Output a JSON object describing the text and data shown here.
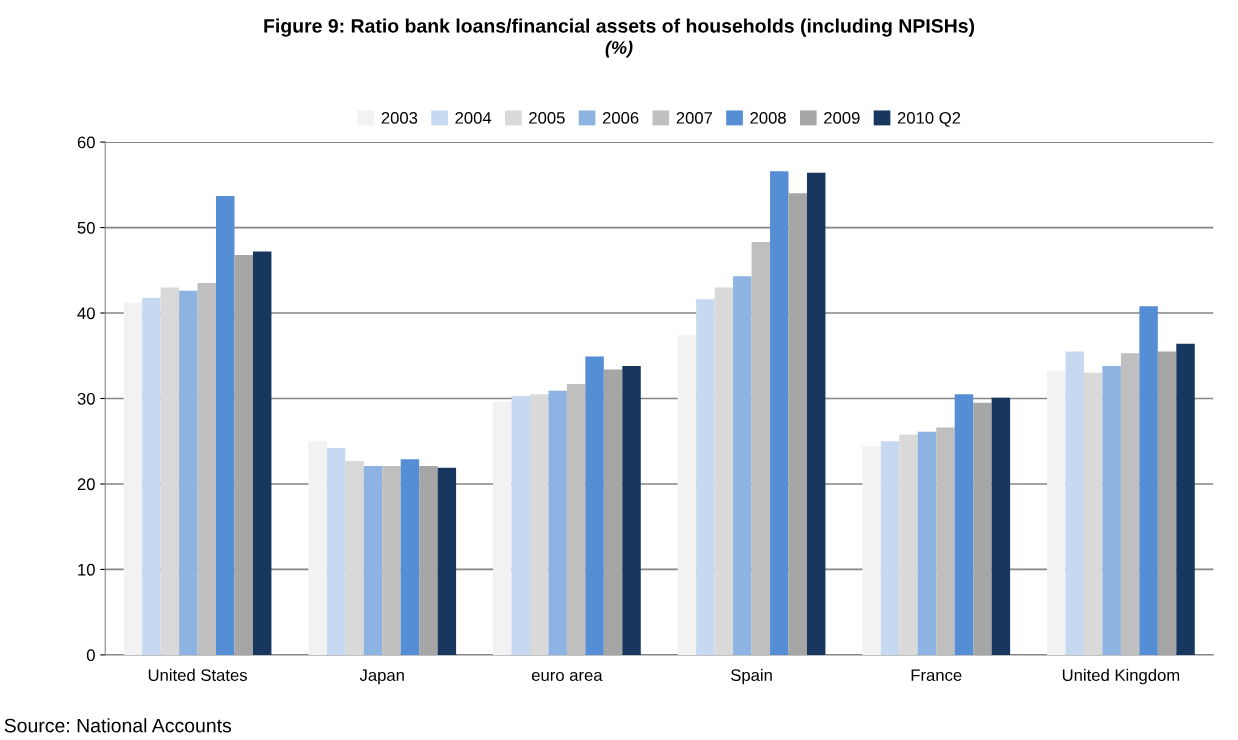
{
  "chart_data": {
    "type": "bar",
    "title": "Figure 9: Ratio bank loans/financial assets of households (including NPISHs)",
    "subtitle": "(%)",
    "categories": [
      "United States",
      "Japan",
      "euro area",
      "Spain",
      "France",
      "United Kingdom"
    ],
    "series": [
      {
        "name": "2003",
        "color": "#f2f2f2",
        "values": [
          41.2,
          25.0,
          29.6,
          37.4,
          24.4,
          33.2
        ]
      },
      {
        "name": "2004",
        "color": "#c6d9f1",
        "values": [
          41.8,
          24.2,
          30.3,
          41.6,
          25.0,
          35.5
        ]
      },
      {
        "name": "2005",
        "color": "#d9d9d9",
        "values": [
          43.0,
          22.7,
          30.5,
          43.0,
          25.8,
          33.0
        ]
      },
      {
        "name": "2006",
        "color": "#8db3e2",
        "values": [
          42.6,
          22.1,
          30.9,
          44.3,
          26.1,
          33.8
        ]
      },
      {
        "name": "2007",
        "color": "#bfbfbf",
        "values": [
          43.5,
          22.1,
          31.7,
          48.3,
          26.6,
          35.3
        ]
      },
      {
        "name": "2008",
        "color": "#558ed5",
        "values": [
          53.7,
          22.9,
          34.9,
          56.6,
          30.5,
          40.8
        ]
      },
      {
        "name": "2009",
        "color": "#a6a6a6",
        "values": [
          46.8,
          22.1,
          33.4,
          54.0,
          29.5,
          35.5
        ]
      },
      {
        "name": "2010 Q2",
        "color": "#17375e",
        "values": [
          47.2,
          21.9,
          33.8,
          56.4,
          30.1,
          36.4
        ]
      }
    ],
    "ylim": [
      0,
      60
    ],
    "yticks": [
      0,
      10,
      20,
      30,
      40,
      50,
      60
    ],
    "grid": "y",
    "legend": "top",
    "annotations": [
      "Source: National Accounts"
    ]
  }
}
